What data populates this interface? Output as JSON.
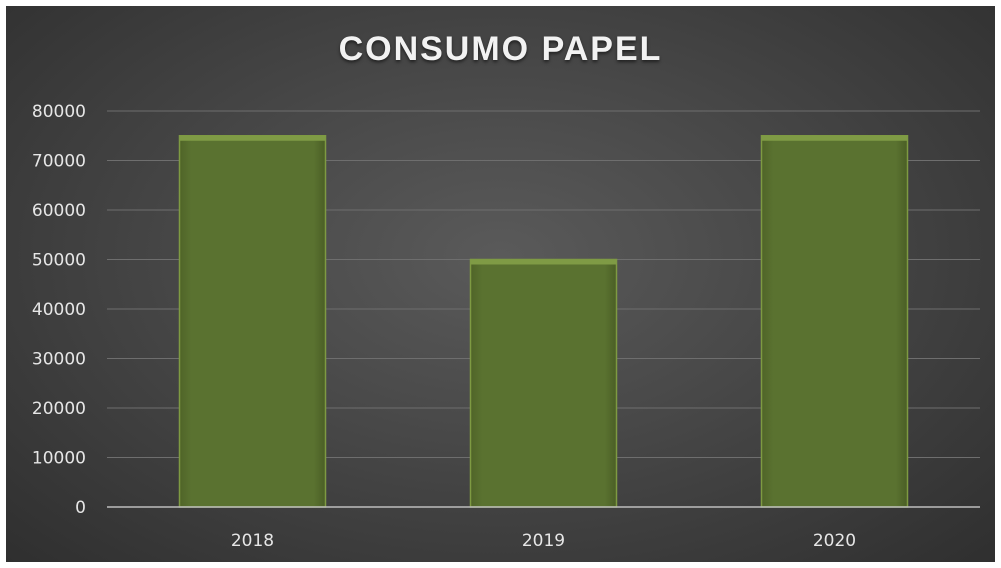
{
  "chart_data": {
    "type": "bar",
    "title": "CONSUMO PAPEL",
    "categories": [
      "2018",
      "2019",
      "2020"
    ],
    "values": [
      75000,
      50000,
      75000
    ],
    "ylim": [
      0,
      80000
    ],
    "yticks": [
      "0",
      "10000",
      "20000",
      "30000",
      "40000",
      "50000",
      "60000",
      "70000",
      "80000"
    ],
    "grid": true,
    "legend": "none",
    "colors": {
      "bar": "#586f2e",
      "bar_edge": "#7e9a42",
      "background": "#474747",
      "gridline": "#6e6e6e",
      "text": "#e6e6e6"
    }
  }
}
